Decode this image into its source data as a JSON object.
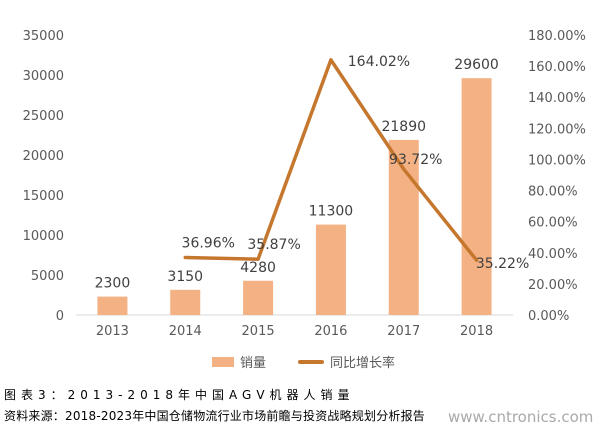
{
  "chart_data": {
    "type": "bar",
    "categories": [
      "2013",
      "2014",
      "2015",
      "2016",
      "2017",
      "2018"
    ],
    "series": [
      {
        "name": "销量",
        "type": "bar",
        "axis": "left",
        "values": [
          2300,
          3150,
          4280,
          11300,
          21890,
          29600
        ],
        "labels": [
          "2300",
          "3150",
          "4280",
          "11300",
          "21890",
          "29600"
        ],
        "color": "#f4b183"
      },
      {
        "name": "同比增长率",
        "type": "line",
        "axis": "right",
        "values": [
          null,
          36.96,
          35.87,
          164.02,
          93.72,
          35.22
        ],
        "labels": [
          "",
          "36.96%",
          "35.87%",
          "164.02%",
          "93.72%",
          "35.22%"
        ],
        "color": "#c5772e"
      }
    ],
    "y_left": {
      "min": 0,
      "max": 35000,
      "ticks": [
        "0",
        "5000",
        "10000",
        "15000",
        "20000",
        "25000",
        "30000",
        "35000"
      ]
    },
    "y_right": {
      "min": 0,
      "max": 180,
      "ticks": [
        "0.00%",
        "20.00%",
        "40.00%",
        "60.00%",
        "80.00%",
        "100.00%",
        "120.00%",
        "140.00%",
        "160.00%",
        "180.00%"
      ]
    },
    "grid": false,
    "legend_position": "bottom"
  },
  "caption": {
    "title": "图表3：2013-2018年中国AGV机器人销量",
    "source": "资料来源：2018-2023年中国仓储物流行业市场前瞻与投资战略规划分析报告"
  },
  "watermark": "www.cntronics.com",
  "colors": {
    "bar": "#f4b183",
    "line": "#c5772e",
    "axis_text": "#595959"
  }
}
